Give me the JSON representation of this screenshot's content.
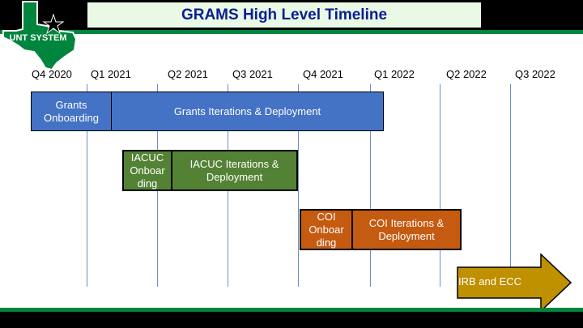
{
  "header": {
    "title": "GRAMS High Level Timeline"
  },
  "logo": {
    "text": "UNT SYSTEM",
    "icon": "texas-star-logo",
    "colors": {
      "state": "#00853e",
      "star": "#000000"
    }
  },
  "quarters": [
    "Q4 2020",
    "Q1 2021",
    "Q2 2021",
    "Q3 2021",
    "Q4 2021",
    "Q1 2022",
    "Q2 2022",
    "Q3 2022"
  ],
  "phases": {
    "grants_onboarding": "Grants Onboarding",
    "grants_iterations": "Grants Iterations & Deployment",
    "iacuc_onboarding": "IACUC Onboar ding",
    "iacuc_iterations": "IACUC Iterations & Deployment",
    "coi_onboarding": "COI Onboar ding",
    "coi_iterations": "COI Iterations & Deployment",
    "irb_ecc": "IRB and ECC"
  },
  "colors": {
    "grants": "#4472c4",
    "iacuc": "#548235",
    "coi": "#c55a11",
    "irb": "#bf9000",
    "title_text": "#0a1f8f"
  }
}
